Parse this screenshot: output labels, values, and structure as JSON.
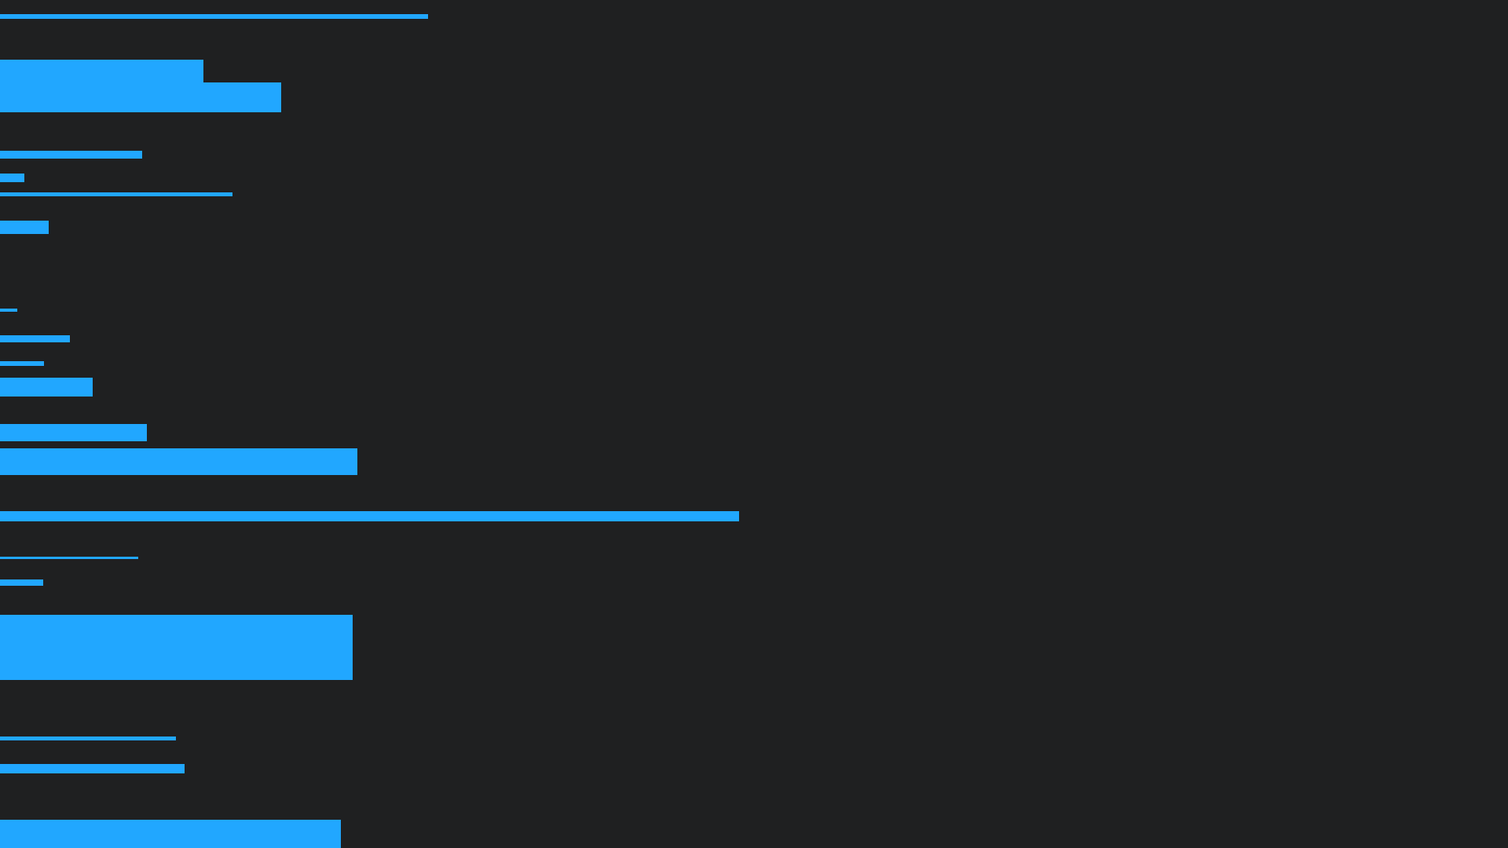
{
  "screen": {
    "background_color": "#1f2021",
    "accent_color": "#21a7ff"
  }
}
